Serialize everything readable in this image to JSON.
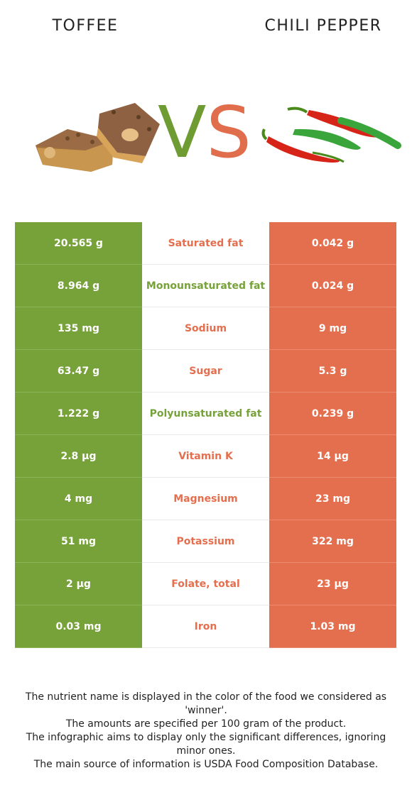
{
  "header": {
    "left_title": "TOFFEE",
    "right_title": "CHILI PEPPER",
    "vs_v": "V",
    "vs_s": "S"
  },
  "colors": {
    "left_accent": "#77a23a",
    "right_accent": "#e46f4f"
  },
  "rows": [
    {
      "left": "20.565 g",
      "name": "Saturated fat",
      "right": "0.042 g",
      "winner": "right"
    },
    {
      "left": "8.964 g",
      "name": "Monounsaturated fat",
      "right": "0.024 g",
      "winner": "left"
    },
    {
      "left": "135 mg",
      "name": "Sodium",
      "right": "9 mg",
      "winner": "right"
    },
    {
      "left": "63.47 g",
      "name": "Sugar",
      "right": "5.3 g",
      "winner": "right"
    },
    {
      "left": "1.222 g",
      "name": "Polyunsaturated fat",
      "right": "0.239 g",
      "winner": "left"
    },
    {
      "left": "2.8 µg",
      "name": "Vitamin K",
      "right": "14 µg",
      "winner": "right"
    },
    {
      "left": "4 mg",
      "name": "Magnesium",
      "right": "23 mg",
      "winner": "right"
    },
    {
      "left": "51 mg",
      "name": "Potassium",
      "right": "322 mg",
      "winner": "right"
    },
    {
      "left": "2 µg",
      "name": "Folate, total",
      "right": "23 µg",
      "winner": "right"
    },
    {
      "left": "0.03 mg",
      "name": "Iron",
      "right": "1.03 mg",
      "winner": "right"
    }
  ],
  "footer": [
    "The nutrient name is displayed in the color of the food we considered as 'winner'.",
    "The amounts are specified per 100 gram of the product.",
    "The infographic aims to display only the significant differences, ignoring minor ones.",
    "The main source of information is USDA Food Composition Database."
  ]
}
